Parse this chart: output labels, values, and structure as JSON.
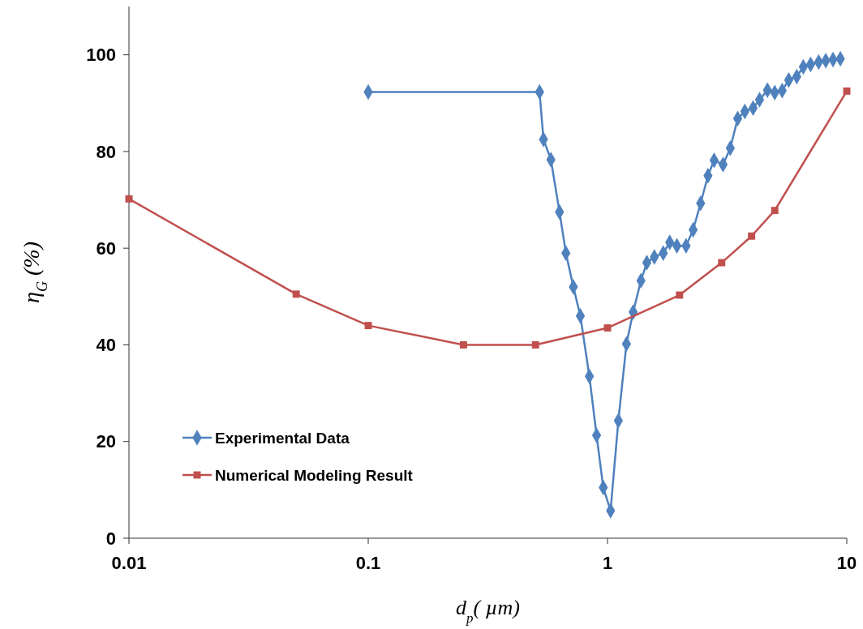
{
  "chart_data": {
    "type": "line",
    "xlabel": "d$_{p}$( µm)",
    "ylabel": "η$_{G}$ (%)",
    "log": "x",
    "xlim": [
      0.01,
      10
    ],
    "xticks": [
      0.01,
      0.1,
      1,
      10
    ],
    "ylim": [
      0,
      110
    ],
    "yticks": [
      0,
      20,
      40,
      60,
      80,
      100
    ],
    "grid": false,
    "legend": "bottom left",
    "line_style": "solid",
    "series": [
      {
        "name": "Experimental Data",
        "color": "#4f81bd",
        "marker": "diamond",
        "x": [
          0.1,
          0.52,
          0.54,
          0.58,
          0.63,
          0.67,
          0.72,
          0.77,
          0.84,
          0.9,
          0.96,
          1.03,
          1.11,
          1.2,
          1.28,
          1.38,
          1.46,
          1.57,
          1.71,
          1.82,
          1.95,
          2.13,
          2.28,
          2.45,
          2.63,
          2.79,
          3.04,
          3.26,
          3.5,
          3.75,
          4.06,
          4.32,
          4.66,
          5.0,
          5.37,
          5.72,
          6.18,
          6.58,
          7.06,
          7.63,
          8.17,
          8.76,
          9.4
        ],
        "values": [
          92.3,
          92.3,
          82.5,
          78.3,
          67.5,
          59,
          52,
          46,
          33.5,
          21.3,
          10.5,
          5.7,
          24.3,
          40.2,
          46.8,
          53.3,
          57,
          58.2,
          59,
          61.2,
          60.5,
          60.5,
          63.8,
          69.3,
          75,
          78.2,
          77.3,
          80.7,
          86.8,
          88.3,
          89,
          90.7,
          92.7,
          92.2,
          92.6,
          94.8,
          95.5,
          97.5,
          98,
          98.5,
          98.8,
          99,
          99.2
        ]
      },
      {
        "name": "Numerical Modeling Result",
        "color": "#c0504d",
        "marker": "square",
        "x": [
          0.01,
          0.05,
          0.1,
          0.25,
          0.5,
          1,
          2,
          3,
          4,
          5,
          10
        ],
        "values": [
          70.2,
          50.5,
          44,
          40,
          40,
          43.5,
          50.3,
          57,
          62.5,
          67.8,
          92.5
        ]
      }
    ]
  }
}
